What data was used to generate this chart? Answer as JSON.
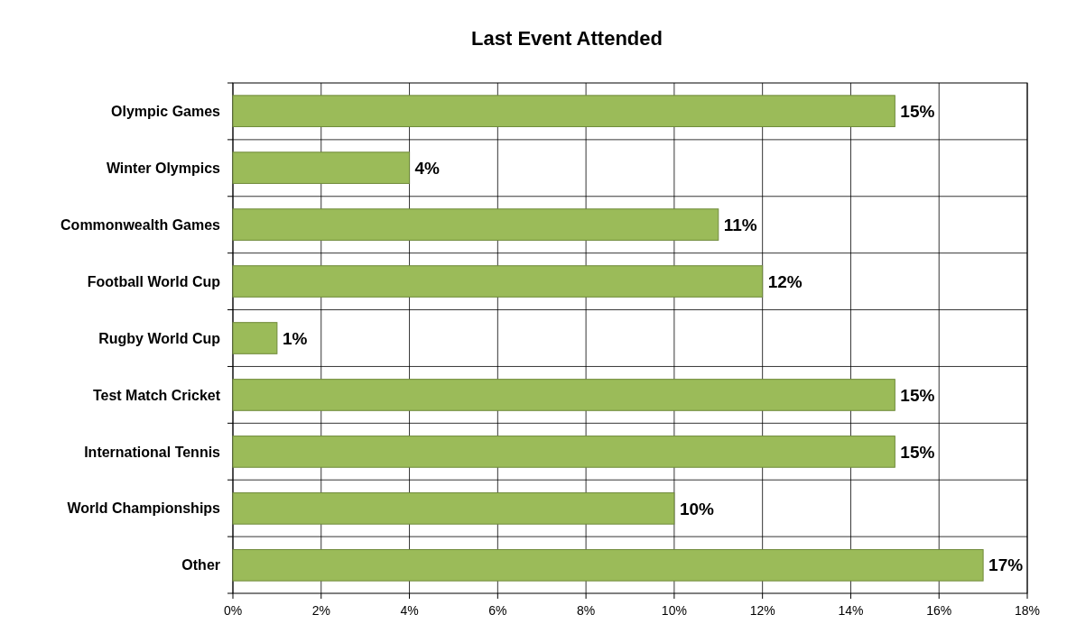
{
  "chart_data": {
    "type": "bar",
    "title": "Last Event Attended",
    "orientation": "horizontal",
    "categories": [
      "Olympic Games",
      "Winter Olympics",
      "Commonwealth Games",
      "Football World Cup",
      "Rugby World Cup",
      "Test Match Cricket",
      "International Tennis",
      "World Championships",
      "Other"
    ],
    "values": [
      15,
      4,
      11,
      12,
      1,
      15,
      15,
      10,
      17
    ],
    "value_labels": [
      "15%",
      "4%",
      "11%",
      "12%",
      "1%",
      "15%",
      "15%",
      "10%",
      "17%"
    ],
    "color": "#9bbb59",
    "xlim": [
      0,
      18
    ],
    "xticks": [
      {
        "value": 0,
        "label": "0%"
      },
      {
        "value": 2,
        "label": "2%"
      },
      {
        "value": 4,
        "label": "4%"
      },
      {
        "value": 6,
        "label": "6%"
      },
      {
        "value": 8,
        "label": "8%"
      },
      {
        "value": 10,
        "label": "10%"
      },
      {
        "value": 12,
        "label": "12%"
      },
      {
        "value": 14,
        "label": "14%"
      },
      {
        "value": 16,
        "label": "16%"
      },
      {
        "value": 18,
        "label": "18%"
      }
    ],
    "grid": true
  }
}
